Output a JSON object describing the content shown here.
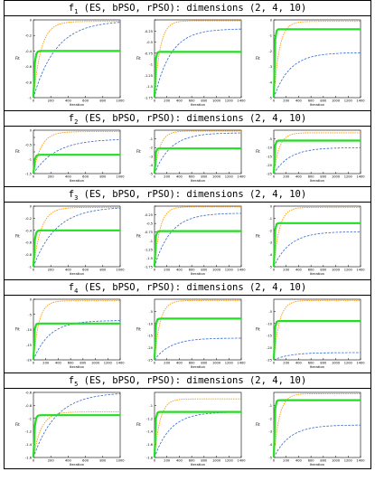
{
  "panels": [
    {
      "id": "f1",
      "header": {
        "sym": "f",
        "sub": "1",
        "rest": " (ES, bPSO, rPSO): dimensions (2, 4, 10)"
      }
    },
    {
      "id": "f2",
      "header": {
        "sym": "f",
        "sub": "2",
        "rest": " (ES, bPSO, rPSO): dimensions (2, 4, 10)"
      }
    },
    {
      "id": "f3",
      "header": {
        "sym": "f",
        "sub": "3",
        "rest": " (ES, bPSO, rPSO): dimensions (2, 4, 10)"
      }
    },
    {
      "id": "f4",
      "header": {
        "sym": "f",
        "sub": "4",
        "rest": " (ES, bPSO, rPSO): dimensions (2, 4, 10)"
      }
    },
    {
      "id": "f5",
      "header": {
        "sym": "f",
        "sub": "5",
        "rest": " (ES, bPSO, rPSO): dimensions (2, 4, 10)"
      }
    }
  ],
  "colors": {
    "ES": "#ff9900",
    "bPSO": "#3366cc",
    "rPSO": "#22dd22"
  },
  "chart_data": [
    {
      "type": "line",
      "fn": "f1",
      "xlabel": "Iteration",
      "ylabel": "Fit",
      "xlim": [
        0,
        1000
      ],
      "ylim": [
        -1,
        0
      ],
      "xticks": [
        0,
        200,
        400,
        600,
        800,
        1000
      ],
      "yticks": [
        0,
        -0.2,
        -0.4,
        -0.6,
        -0.8,
        -1
      ],
      "ytick_labels": [
        "0",
        "-0.2",
        "-0.4",
        "-0.6",
        "-0.8",
        "-1"
      ],
      "series": [
        {
          "final": -0.02
        },
        {
          "final": -0.01
        },
        {
          "final": -0.4
        }
      ]
    },
    {
      "type": "line",
      "fn": "f1",
      "xlabel": "Iteration",
      "ylabel": "Fit",
      "xlim": [
        0,
        1400
      ],
      "ylim": [
        -1.75,
        0
      ],
      "xticks": [
        0,
        200,
        400,
        600,
        800,
        1000,
        1200,
        1400
      ],
      "yticks": [
        0,
        -0.25,
        -0.5,
        -0.75,
        -1,
        -1.25,
        -1.5,
        -1.75
      ],
      "ytick_labels": [
        "",
        "-0.25",
        "-0.5",
        "-0.75",
        "-1",
        "-1.25",
        "-1.5",
        "-1.75"
      ],
      "series": [
        {
          "final": -0.02
        },
        {
          "final": -0.2
        },
        {
          "final": -0.72
        }
      ]
    },
    {
      "type": "line",
      "fn": "f1",
      "xlabel": "Iteration",
      "ylabel": "Fit",
      "xlim": [
        0,
        1400
      ],
      "ylim": [
        -5,
        0
      ],
      "xticks": [
        0,
        200,
        400,
        600,
        800,
        1000,
        1200,
        1400
      ],
      "yticks": [
        0,
        -1,
        -2,
        -3,
        -4,
        -5
      ],
      "ytick_labels": [
        "0",
        "-1",
        "-2",
        "-3",
        "-4",
        "-5"
      ],
      "series": [
        {
          "final": -0.1
        },
        {
          "final": -2.1
        },
        {
          "final": -0.6
        }
      ]
    },
    {
      "type": "line",
      "fn": "f2",
      "xlabel": "Iteration",
      "ylabel": "Fit",
      "xlim": [
        0,
        1000
      ],
      "ylim": [
        -1.5,
        0
      ],
      "xticks": [
        0,
        200,
        400,
        600,
        800,
        1000
      ],
      "yticks": [
        0,
        -0.25,
        -0.5,
        -0.75,
        -1,
        -1.25,
        -1.5
      ],
      "ytick_labels": [
        "0",
        "",
        "-0.5",
        "",
        "-1",
        "",
        "-1.5"
      ],
      "series": [
        {
          "final": -0.05
        },
        {
          "final": -0.3
        },
        {
          "final": -0.85
        }
      ]
    },
    {
      "type": "line",
      "fn": "f2",
      "xlabel": "Iteration",
      "ylabel": "Fit",
      "xlim": [
        0,
        1400
      ],
      "ylim": [
        -5,
        0
      ],
      "xticks": [
        0,
        200,
        400,
        600,
        800,
        1000,
        1200,
        1400
      ],
      "yticks": [
        -1,
        -2,
        -3,
        -4,
        -5
      ],
      "ytick_labels": [
        "-1",
        "-2",
        "-3",
        "-4",
        "-5"
      ],
      "series": [
        {
          "final": -0.1
        },
        {
          "final": -0.3
        },
        {
          "final": -2.1
        }
      ]
    },
    {
      "type": "line",
      "fn": "f2",
      "xlabel": "Iteration",
      "ylabel": "Fit",
      "xlim": [
        0,
        1400
      ],
      "ylim": [
        -25,
        0
      ],
      "xticks": [
        0,
        200,
        400,
        600,
        800,
        1000,
        1200,
        1400
      ],
      "yticks": [
        -5,
        -10,
        -15,
        -20,
        -25
      ],
      "ytick_labels": [
        "-5",
        "-10",
        "-15",
        "-20",
        "-25"
      ],
      "series": [
        {
          "final": -1.5
        },
        {
          "final": -10
        },
        {
          "final": -6
        }
      ]
    },
    {
      "type": "line",
      "fn": "f3",
      "xlabel": "Iteration",
      "ylabel": "Fit",
      "xlim": [
        0,
        1000
      ],
      "ylim": [
        -1,
        0
      ],
      "xticks": [
        0,
        200,
        400,
        600,
        800,
        1000
      ],
      "yticks": [
        0,
        -0.2,
        -0.4,
        -0.6,
        -0.8,
        -1
      ],
      "ytick_labels": [
        "0",
        "-0.2",
        "-0.4",
        "-0.6",
        "-0.8",
        "-1"
      ],
      "series": [
        {
          "final": -0.02
        },
        {
          "final": -0.01
        },
        {
          "final": -0.4
        }
      ]
    },
    {
      "type": "line",
      "fn": "f3",
      "xlabel": "Iteration",
      "ylabel": "Fit",
      "xlim": [
        0,
        1400
      ],
      "ylim": [
        -1.75,
        0
      ],
      "xticks": [
        0,
        200,
        400,
        600,
        800,
        1000,
        1200,
        1400
      ],
      "yticks": [
        0,
        -0.25,
        -0.5,
        -0.75,
        -1,
        -1.25,
        -1.5,
        -1.75
      ],
      "ytick_labels": [
        "",
        "-0.25",
        "-0.5",
        "-0.75",
        "-1",
        "-1.25",
        "-1.5",
        "-1.75"
      ],
      "series": [
        {
          "final": -0.02
        },
        {
          "final": -0.2
        },
        {
          "final": -0.72
        }
      ]
    },
    {
      "type": "line",
      "fn": "f3",
      "xlabel": "Iteration",
      "ylabel": "Fit",
      "xlim": [
        0,
        1400
      ],
      "ylim": [
        -5,
        0
      ],
      "xticks": [
        0,
        200,
        400,
        600,
        800,
        1000,
        1200,
        1400
      ],
      "yticks": [
        0,
        -1,
        -2,
        -3,
        -4,
        -5
      ],
      "ytick_labels": [
        "0",
        "-1",
        "-2",
        "-3",
        "-4",
        "-5"
      ],
      "series": [
        {
          "final": -0.1
        },
        {
          "final": -2.1
        },
        {
          "final": -1.4
        }
      ]
    },
    {
      "type": "line",
      "fn": "f4",
      "xlabel": "Iteration",
      "ylabel": "Fit",
      "xlim": [
        0,
        1400
      ],
      "ylim": [
        -20,
        0
      ],
      "xticks": [
        0,
        200,
        400,
        600,
        800,
        1000,
        1200,
        1400
      ],
      "yticks": [
        0,
        -5,
        -10,
        -15,
        -20
      ],
      "ytick_labels": [
        "0",
        "-5",
        "-10",
        "-15",
        "-20"
      ],
      "series": [
        {
          "final": -0.5
        },
        {
          "final": -7
        },
        {
          "final": -8
        }
      ]
    },
    {
      "type": "line",
      "fn": "f4",
      "xlabel": "Iteration",
      "ylabel": "Fit",
      "xlim": [
        0,
        1400
      ],
      "ylim": [
        -25,
        0
      ],
      "xticks": [
        0,
        200,
        400,
        600,
        800,
        1000,
        1200,
        1400
      ],
      "yticks": [
        -5,
        -10,
        -15,
        -20,
        -25
      ],
      "ytick_labels": [
        "-5",
        "-10",
        "-15",
        "-20",
        "-25"
      ],
      "series": [
        {
          "final": -0.5
        },
        {
          "final": -16
        },
        {
          "final": -8
        }
      ]
    },
    {
      "type": "line",
      "fn": "f4",
      "xlabel": "Iteration",
      "ylabel": "Fit",
      "xlim": [
        0,
        1400
      ],
      "ylim": [
        -25,
        0
      ],
      "xticks": [
        0,
        200,
        400,
        600,
        800,
        1000,
        1200,
        1400
      ],
      "yticks": [
        -5,
        -10,
        -15,
        -20,
        -25
      ],
      "ytick_labels": [
        "-5",
        "-10",
        "-15",
        "-20",
        "-25"
      ],
      "series": [
        {
          "final": -0.5
        },
        {
          "final": -22
        },
        {
          "final": -9
        }
      ]
    },
    {
      "type": "line",
      "fn": "f5",
      "xlabel": "Iteration",
      "ylabel": "Fit",
      "xlim": [
        0,
        1000
      ],
      "ylim": [
        -1.6,
        -0.6
      ],
      "xticks": [
        0,
        200,
        400,
        600,
        800,
        1000
      ],
      "yticks": [
        -0.6,
        -0.8,
        -1,
        -1.2,
        -1.4,
        -1.6
      ],
      "ytick_labels": [
        "-0.6",
        "-0.8",
        "-1",
        "-1.2",
        "-1.4",
        "-1.6"
      ],
      "series": [
        {
          "final": -0.9
        },
        {
          "final": -0.6
        },
        {
          "final": -0.95
        }
      ]
    },
    {
      "type": "line",
      "fn": "f5",
      "xlabel": "Iteration",
      "ylabel": "Fit",
      "xlim": [
        0,
        1400
      ],
      "ylim": [
        -1.8,
        -0.8
      ],
      "xticks": [
        0,
        200,
        400,
        600,
        800,
        1000,
        1200,
        1400
      ],
      "yticks": [
        -1,
        -1.2,
        -1.4,
        -1.6,
        -1.8
      ],
      "ytick_labels": [
        "-1",
        "-1.2",
        "-1.4",
        "-1.6",
        "-1.8"
      ],
      "series": [
        {
          "final": -0.9
        },
        {
          "final": -1.1
        },
        {
          "final": -1.1
        }
      ]
    },
    {
      "type": "line",
      "fn": "f5",
      "xlabel": "Iteration",
      "ylabel": "Fit",
      "xlim": [
        0,
        1400
      ],
      "ylim": [
        -5,
        0
      ],
      "xticks": [
        0,
        200,
        400,
        600,
        800,
        1000,
        1200,
        1400
      ],
      "yticks": [
        -1,
        -2,
        -3,
        -4,
        -5
      ],
      "ytick_labels": [
        "-1",
        "-2",
        "-3",
        "-4",
        "-5"
      ],
      "series": [
        {
          "final": -0.1
        },
        {
          "final": -2.5
        },
        {
          "final": -0.6
        }
      ]
    }
  ]
}
